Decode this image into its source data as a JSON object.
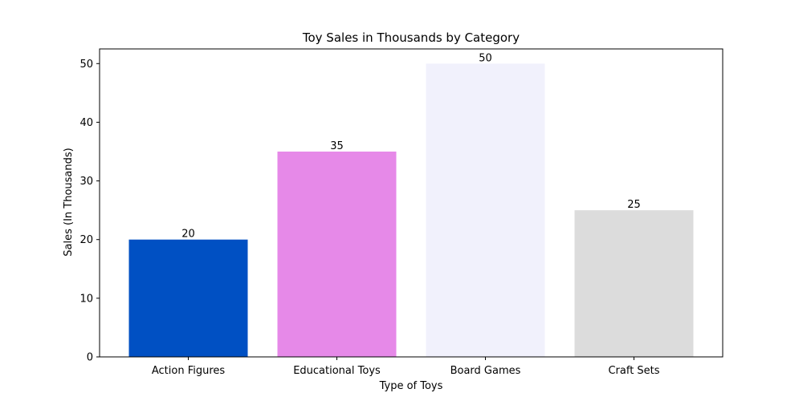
{
  "chart_data": {
    "type": "bar",
    "title": "Toy Sales in Thousands by Category",
    "xlabel": "Type of Toys",
    "ylabel": "Sales (In Thousands)",
    "categories": [
      "Action Figures",
      "Educational Toys",
      "Board Games",
      "Craft Sets"
    ],
    "values": [
      20,
      35,
      50,
      25
    ],
    "colors": [
      "#0050c3",
      "#e689e8",
      "#f1f1fc",
      "#dcdcdc"
    ],
    "ylim": [
      0,
      52.5
    ],
    "yticks": [
      0,
      10,
      20,
      30,
      40,
      50
    ],
    "data_labels": [
      "20",
      "35",
      "50",
      "25"
    ],
    "grid": false,
    "legend": false
  }
}
